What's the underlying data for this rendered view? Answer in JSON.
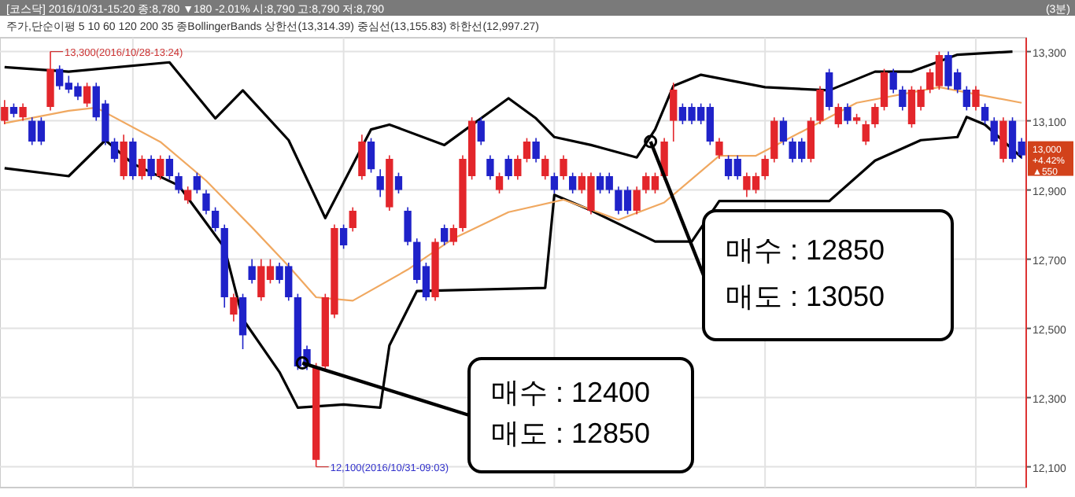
{
  "chart_data": {
    "type": "candlestick",
    "title": "[코스닥] 2016/10/31-15:20 종:8,780 ▼180 -2.01% 시:8,790 고:8,790 저:8,790",
    "subtitle": "주가,단순이평 5 10 60 120 200 35 종BollingerBands 상한선(13,314.39) 중심선(13,155.83) 하한선(12,997.27)",
    "categories": [
      null,
      null,
      null,
      null,
      null,
      null,
      null,
      null,
      null,
      null,
      null,
      null,
      null,
      null,
      null,
      null,
      null,
      null,
      null,
      null,
      null,
      null,
      null,
      null,
      null,
      null,
      null,
      null,
      null,
      null,
      null,
      null,
      null,
      null,
      null,
      null,
      null,
      null,
      null,
      null,
      null,
      null,
      null,
      null,
      null,
      null,
      null,
      null,
      null,
      null,
      null,
      null,
      null,
      null,
      null,
      null,
      null,
      null,
      null,
      null,
      null,
      null,
      null,
      null,
      null,
      null,
      null,
      null,
      null,
      null,
      null,
      null,
      null,
      null,
      null,
      null,
      null,
      null,
      null,
      null,
      null,
      null,
      null,
      null,
      null,
      null,
      null,
      null,
      null,
      null,
      null,
      null,
      null,
      null,
      null,
      null,
      null,
      null,
      null,
      null,
      null,
      null,
      null,
      null,
      null,
      null,
      null,
      null,
      null,
      null,
      null,
      null
    ],
    "ohlc": [
      [
        13100,
        13160,
        13090,
        13140
      ],
      [
        13140,
        13150,
        13110,
        13120
      ],
      [
        13110,
        13150,
        13100,
        13140
      ],
      [
        13100,
        13110,
        13030,
        13040
      ],
      [
        13100,
        13110,
        13030,
        13040
      ],
      [
        13140,
        13300,
        13130,
        13250
      ],
      [
        13250,
        13260,
        13190,
        13200
      ],
      [
        13210,
        13230,
        13180,
        13190
      ],
      [
        13200,
        13210,
        13160,
        13170
      ],
      [
        13150,
        13210,
        13140,
        13200
      ],
      [
        13200,
        13210,
        13100,
        13110
      ],
      [
        13150,
        13160,
        13030,
        13040
      ],
      [
        13040,
        13050,
        12980,
        12990
      ],
      [
        12940,
        13060,
        12930,
        13040
      ],
      [
        13040,
        13050,
        12930,
        12940
      ],
      [
        12940,
        13000,
        12930,
        12990
      ],
      [
        12990,
        13000,
        12930,
        12940
      ],
      [
        12940,
        13000,
        12930,
        12990
      ],
      [
        12990,
        13000,
        12930,
        12940
      ],
      [
        12940,
        12950,
        12890,
        12900
      ],
      [
        12870,
        12910,
        12860,
        12900
      ],
      [
        12940,
        12950,
        12890,
        12900
      ],
      [
        12890,
        12900,
        12830,
        12840
      ],
      [
        12840,
        12850,
        12780,
        12790
      ],
      [
        12790,
        12800,
        12560,
        12590
      ],
      [
        12540,
        12600,
        12520,
        12590
      ],
      [
        12590,
        12600,
        12440,
        12480
      ],
      [
        12680,
        12700,
        12630,
        12640
      ],
      [
        12590,
        12700,
        12580,
        12680
      ],
      [
        12640,
        12700,
        12630,
        12680
      ],
      [
        12680,
        12690,
        12630,
        12640
      ],
      [
        12680,
        12690,
        12580,
        12590
      ],
      [
        12590,
        12600,
        12380,
        12390
      ],
      [
        12440,
        12450,
        12380,
        12390
      ],
      [
        12120,
        12400,
        12100,
        12390
      ],
      [
        12390,
        12600,
        12380,
        12590
      ],
      [
        12540,
        12800,
        12530,
        12790
      ],
      [
        12790,
        12800,
        12730,
        12740
      ],
      [
        12790,
        12850,
        12780,
        12840
      ],
      [
        12940,
        13060,
        12930,
        13040
      ],
      [
        13040,
        13050,
        12950,
        12960
      ],
      [
        12940,
        12960,
        12880,
        12900
      ],
      [
        12850,
        13000,
        12840,
        12990
      ],
      [
        12940,
        12950,
        12890,
        12900
      ],
      [
        12840,
        12850,
        12740,
        12750
      ],
      [
        12750,
        12760,
        12630,
        12640
      ],
      [
        12680,
        12690,
        12580,
        12590
      ],
      [
        12590,
        12760,
        12580,
        12750
      ],
      [
        12790,
        12800,
        12740,
        12750
      ],
      [
        12750,
        12800,
        12740,
        12790
      ],
      [
        12790,
        13000,
        12780,
        12990
      ],
      [
        12940,
        13110,
        12930,
        13100
      ],
      [
        13100,
        13110,
        13030,
        13040
      ],
      [
        12990,
        13000,
        12930,
        12940
      ],
      [
        12900,
        12950,
        12890,
        12940
      ],
      [
        12990,
        13000,
        12930,
        12940
      ],
      [
        12940,
        13000,
        12930,
        12990
      ],
      [
        12990,
        13050,
        12980,
        13040
      ],
      [
        13040,
        13050,
        12980,
        12990
      ],
      [
        12940,
        13000,
        12930,
        12990
      ],
      [
        12940,
        12950,
        12890,
        12900
      ],
      [
        12940,
        13000,
        12930,
        12990
      ],
      [
        12940,
        12950,
        12890,
        12900
      ],
      [
        12900,
        12950,
        12890,
        12940
      ],
      [
        12840,
        12950,
        12830,
        12940
      ],
      [
        12940,
        12950,
        12890,
        12900
      ],
      [
        12940,
        12950,
        12890,
        12900
      ],
      [
        12900,
        12910,
        12830,
        12840
      ],
      [
        12900,
        12910,
        12830,
        12840
      ],
      [
        12840,
        12910,
        12830,
        12900
      ],
      [
        12900,
        12950,
        12890,
        12940
      ],
      [
        12900,
        12950,
        12890,
        12940
      ],
      [
        12940,
        13050,
        12930,
        13040
      ],
      [
        13100,
        13210,
        13040,
        13190
      ],
      [
        13140,
        13150,
        13090,
        13100
      ],
      [
        13140,
        13150,
        13090,
        13100
      ],
      [
        13140,
        13150,
        13090,
        13100
      ],
      [
        13140,
        13150,
        13030,
        13040
      ],
      [
        13000,
        13050,
        12990,
        13040
      ],
      [
        12990,
        13000,
        12930,
        12940
      ],
      [
        12990,
        13000,
        12930,
        12940
      ],
      [
        12900,
        12950,
        12880,
        12940
      ],
      [
        12900,
        12950,
        12890,
        12940
      ],
      [
        12940,
        13000,
        12930,
        12990
      ],
      [
        12990,
        13110,
        12980,
        13100
      ],
      [
        13100,
        13110,
        13030,
        13040
      ],
      [
        13040,
        13050,
        12980,
        12990
      ],
      [
        13040,
        13050,
        12980,
        12990
      ],
      [
        12990,
        13110,
        12980,
        13100
      ],
      [
        13100,
        13200,
        13090,
        13190
      ],
      [
        13240,
        13250,
        13130,
        13140
      ],
      [
        13090,
        13150,
        13080,
        13140
      ],
      [
        13140,
        13150,
        13090,
        13100
      ],
      [
        13100,
        13120,
        13090,
        13110
      ],
      [
        13040,
        13100,
        13030,
        13090
      ],
      [
        13090,
        13150,
        13080,
        13140
      ],
      [
        13140,
        13250,
        13130,
        13240
      ],
      [
        13240,
        13250,
        13180,
        13190
      ],
      [
        13190,
        13200,
        13130,
        13140
      ],
      [
        13090,
        13200,
        13080,
        13190
      ],
      [
        13140,
        13200,
        13130,
        13190
      ],
      [
        13190,
        13250,
        13180,
        13240
      ],
      [
        13200,
        13300,
        13190,
        13290
      ],
      [
        13290,
        13300,
        13190,
        13200
      ],
      [
        13240,
        13250,
        13180,
        13190
      ],
      [
        13190,
        13200,
        13130,
        13140
      ],
      [
        13140,
        13200,
        13130,
        13190
      ],
      [
        13140,
        13150,
        13090,
        13100
      ],
      [
        13100,
        13110,
        13030,
        13040
      ],
      [
        12990,
        13110,
        12980,
        13100
      ],
      [
        13100,
        13110,
        12980,
        12990
      ],
      [
        13040,
        13050,
        12990,
        13000
      ]
    ],
    "series": [
      {
        "type": "line",
        "color": "#000000",
        "values": [
          13255,
          null,
          null,
          null,
          null,
          null,
          null,
          13242,
          null,
          null,
          null,
          null,
          null,
          null,
          null,
          null,
          null,
          null,
          13269,
          null,
          null,
          null,
          null,
          13107,
          null,
          null,
          13188,
          null,
          null,
          null,
          null,
          13044,
          null,
          null,
          null,
          12819,
          null,
          null,
          null,
          null,
          13075,
          null,
          13089,
          null,
          null,
          null,
          null,
          null,
          13030,
          null,
          null,
          null,
          null,
          null,
          null,
          13165,
          null,
          null,
          13107,
          null,
          13053,
          null,
          null,
          null,
          13030,
          null,
          null,
          null,
          null,
          12994,
          null,
          13075,
          null,
          13201,
          null,
          null,
          13233,
          null,
          null,
          null,
          null,
          null,
          null,
          13197,
          null,
          null,
          null,
          null,
          null,
          null,
          13188,
          null,
          null,
          null,
          null,
          13242,
          null,
          null,
          null,
          13242,
          null,
          null,
          null,
          null,
          13291,
          null,
          null,
          null,
          null,
          null,
          13300,
          null
        ]
      },
      {
        "type": "line",
        "color": "#000000",
        "values": [
          12963,
          null,
          null,
          null,
          null,
          null,
          null,
          12940,
          null,
          null,
          null,
          13044,
          null,
          null,
          12976,
          null,
          null,
          null,
          null,
          12913,
          null,
          null,
          null,
          null,
          12733,
          null,
          12527,
          null,
          null,
          null,
          12374,
          null,
          12271,
          null,
          null,
          null,
          null,
          12280,
          null,
          null,
          null,
          12271,
          12451,
          null,
          null,
          12608,
          null,
          null,
          null,
          null,
          null,
          null,
          null,
          null,
          null,
          null,
          null,
          null,
          null,
          12617,
          12886,
          null,
          null,
          null,
          12841,
          null,
          null,
          null,
          null,
          null,
          null,
          12751,
          null,
          null,
          null,
          12751,
          null,
          null,
          12868,
          null,
          null,
          null,
          null,
          null,
          null,
          12868,
          null,
          null,
          null,
          null,
          12868,
          null,
          null,
          null,
          null,
          12985,
          null,
          null,
          null,
          null,
          13044,
          null,
          null,
          null,
          13053,
          13111,
          null,
          13089,
          null,
          null,
          null,
          12994
        ]
      },
      {
        "type": "line",
        "color": "#f0a860",
        "values": [
          13093,
          null,
          null,
          null,
          null,
          null,
          null,
          13129,
          null,
          null,
          13138,
          null,
          null,
          null,
          null,
          null,
          null,
          13039,
          null,
          null,
          null,
          null,
          12927,
          null,
          null,
          null,
          null,
          12792,
          null,
          null,
          null,
          12680,
          null,
          null,
          12590,
          null,
          null,
          null,
          12580,
          null,
          null,
          null,
          null,
          null,
          12670,
          null,
          null,
          null,
          null,
          12760,
          null,
          null,
          null,
          null,
          null,
          12836,
          null,
          null,
          null,
          null,
          null,
          12872,
          null,
          null,
          null,
          null,
          null,
          12814,
          null,
          null,
          null,
          null,
          12864,
          null,
          null,
          null,
          null,
          null,
          12999,
          null,
          null,
          null,
          12999,
          null,
          null,
          null,
          null,
          null,
          null,
          null,
          null,
          null,
          null,
          13152,
          null,
          null,
          null,
          null,
          null,
          null,
          null,
          null,
          13197,
          null,
          null,
          null,
          null,
          null,
          null,
          null,
          null,
          13152
        ]
      }
    ],
    "ylim": [
      12040,
      13340
    ],
    "yticks": [
      {
        "value": 12100,
        "label": "12,100"
      },
      {
        "value": 12300,
        "label": "12,300"
      },
      {
        "value": 12500,
        "label": "12,500"
      },
      {
        "value": 12700,
        "label": "12,700"
      },
      {
        "value": 12900,
        "label": "12,900"
      },
      {
        "value": 13100,
        "label": "13,100"
      },
      {
        "value": 13300,
        "label": "13,300"
      }
    ],
    "grid": true,
    "annotations": [
      "13,300(2016/10/28-13:24)",
      "12,100(2016/10/31-09:03)",
      "매수 : 12400\n매도 : 12850",
      "매수 : 12850\n매도 : 13050",
      "13,000\n+4.42%\n▲550",
      "(3분)"
    ]
  }
}
